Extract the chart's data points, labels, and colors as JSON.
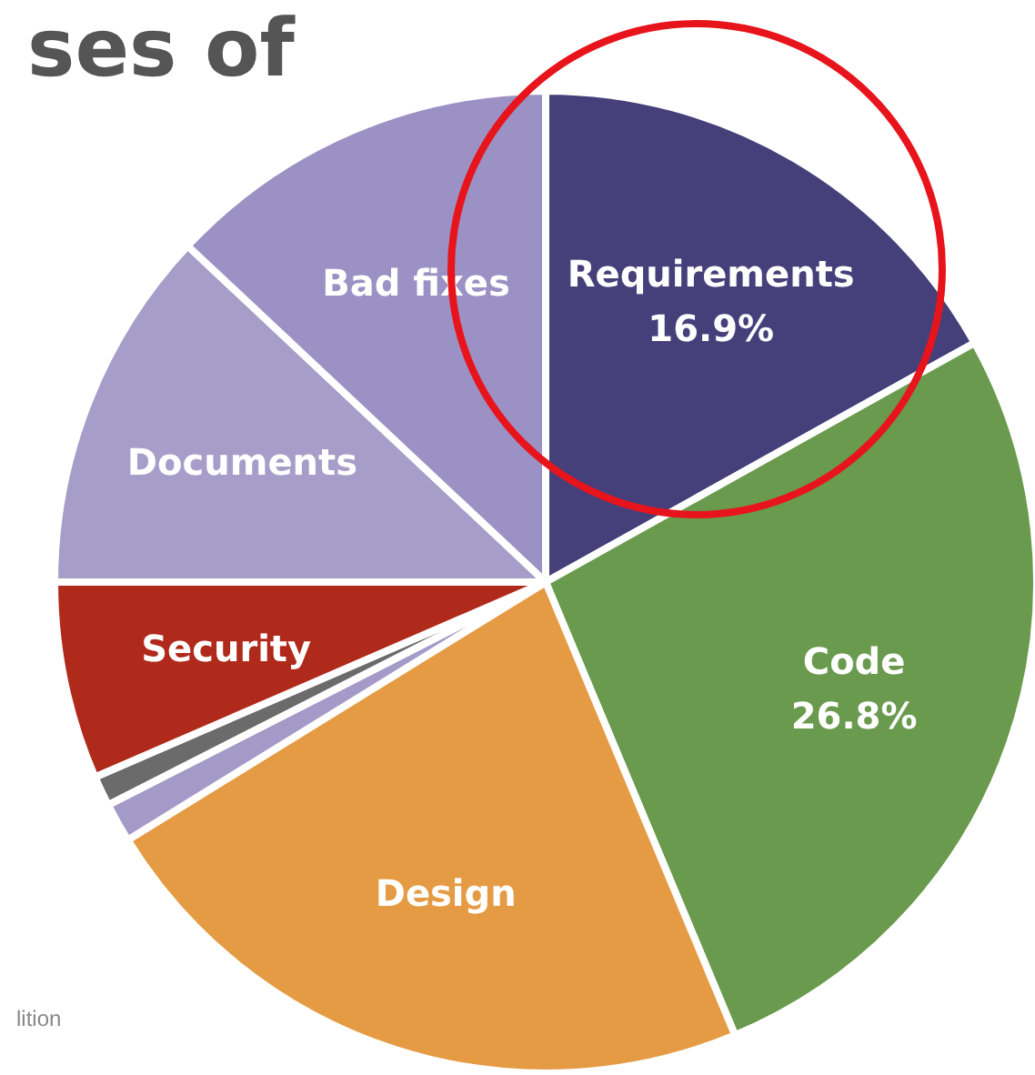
{
  "chart_data": {
    "type": "pie",
    "title": "ses of",
    "categories": [
      "Requirements",
      "Code",
      "Design",
      null,
      null,
      "Security",
      "Documents",
      "Bad fixes"
    ],
    "values": [
      16.9,
      26.8,
      22.5,
      1.3,
      1.0,
      6.5,
      12.0,
      13.0
    ],
    "value_labels": [
      "16.9%",
      "26.8%",
      null,
      null,
      null,
      null,
      null,
      null
    ],
    "colors": [
      "#46407a",
      "#6a9a4d",
      "#e59b44",
      "#a49ac8",
      "#6b6b6b",
      "#b02a1c",
      "#a79dc9",
      "#9b91c4"
    ],
    "annotations": [
      "lition"
    ],
    "legend": false
  }
}
